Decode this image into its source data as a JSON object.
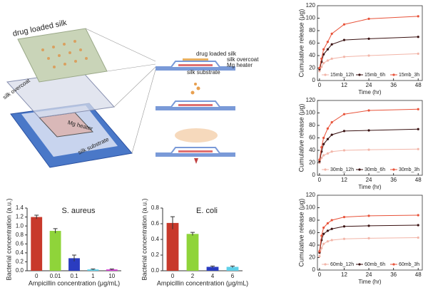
{
  "diagram": {
    "left_labels": [
      "drug loaded silk",
      "silk overcoat",
      "Mg heater",
      "silk substrate"
    ],
    "cross_section_labels": [
      "drug loaded silk",
      "silk overcoat",
      "Mg heater",
      "silk substrate"
    ]
  },
  "chart_data": [
    {
      "type": "line",
      "x": [
        0,
        1,
        2,
        4,
        6,
        12,
        24,
        48
      ],
      "xlim": [
        -1,
        50
      ],
      "xticks": [
        0,
        12,
        24,
        36,
        48
      ],
      "ylim": [
        0,
        120
      ],
      "yticks": [
        0,
        20,
        40,
        60,
        80,
        100,
        120
      ],
      "x_label": "Time (hr)",
      "y_label": "Cumulative release (μg)",
      "legend": "bottom",
      "series": [
        {
          "name": "15mb_12h",
          "color": "#f2b5a8",
          "values": [
            15,
            22,
            28,
            32,
            35,
            38,
            40,
            43
          ]
        },
        {
          "name": "15mb_6h",
          "color": "#3a1212",
          "values": [
            18,
            30,
            42,
            50,
            58,
            65,
            67,
            70
          ]
        },
        {
          "name": "15mb_3h",
          "color": "#e8533a",
          "values": [
            20,
            35,
            50,
            62,
            75,
            90,
            99,
            103
          ]
        }
      ]
    },
    {
      "type": "line",
      "x": [
        0,
        1,
        2,
        4,
        6,
        12,
        24,
        48
      ],
      "xlim": [
        -1,
        50
      ],
      "xticks": [
        0,
        12,
        24,
        36,
        48
      ],
      "ylim": [
        0,
        120
      ],
      "yticks": [
        0,
        20,
        40,
        60,
        80,
        100,
        120
      ],
      "x_label": "Time (hr)",
      "y_label": "Cumulative release (μg)",
      "legend": "bottom",
      "series": [
        {
          "name": "30mb_12h",
          "color": "#f2b5a8",
          "values": [
            20,
            28,
            32,
            35,
            38,
            40,
            41,
            42
          ]
        },
        {
          "name": "30mb_6h",
          "color": "#3a1212",
          "values": [
            22,
            38,
            50,
            58,
            65,
            71,
            72,
            74
          ]
        },
        {
          "name": "30mb_3h",
          "color": "#e8533a",
          "values": [
            25,
            45,
            60,
            75,
            85,
            98,
            104,
            106
          ]
        }
      ]
    },
    {
      "type": "line",
      "x": [
        0,
        1,
        2,
        4,
        6,
        12,
        24,
        48
      ],
      "xlim": [
        -1,
        50
      ],
      "xticks": [
        0,
        12,
        24,
        36,
        48
      ],
      "ylim": [
        0,
        120
      ],
      "yticks": [
        0,
        20,
        40,
        60,
        80,
        100,
        120
      ],
      "x_label": "Time (hr)",
      "y_label": "Cumulative release (μg)",
      "legend": "bottom",
      "series": [
        {
          "name": "60mb_12h",
          "color": "#f2b5a8",
          "values": [
            22,
            35,
            42,
            46,
            48,
            50,
            51,
            52
          ]
        },
        {
          "name": "60mb_6h",
          "color": "#3a1212",
          "values": [
            28,
            48,
            58,
            63,
            66,
            70,
            71,
            72
          ]
        },
        {
          "name": "60mb_3h",
          "color": "#e8533a",
          "values": [
            30,
            55,
            68,
            75,
            80,
            85,
            87,
            88
          ]
        }
      ]
    },
    {
      "type": "bar",
      "title": "S. aureus",
      "categories": [
        "0",
        "0.01",
        "0.1",
        "1",
        "10"
      ],
      "values": [
        1.2,
        0.89,
        0.28,
        0.03,
        0.03
      ],
      "errors": [
        0.04,
        0.05,
        0.07,
        0.01,
        0.01
      ],
      "colors": [
        "#c8392b",
        "#8fd43a",
        "#2a3cc0",
        "#5fd0e8",
        "#d040d0"
      ],
      "ylim": [
        0,
        1.4
      ],
      "yticks": [
        {
          "value": 0,
          "label": "0.0"
        },
        0.2,
        0.4,
        0.6,
        0.8,
        {
          "value": 1,
          "label": "1.0"
        },
        1.2,
        1.4
      ],
      "x_label": "Ampicillin concentration (μg/mL)",
      "y_label": "Bacterial concentration (a.u.)"
    },
    {
      "type": "bar",
      "title": "E. coli",
      "categories": [
        "0",
        "2",
        "4",
        "6"
      ],
      "values": [
        0.61,
        0.47,
        0.05,
        0.05
      ],
      "errors": [
        0.08,
        0.02,
        0.01,
        0.01
      ],
      "colors": [
        "#c8392b",
        "#8fd43a",
        "#2a3cc0",
        "#5fd0e8"
      ],
      "ylim": [
        0,
        0.8
      ],
      "yticks": [
        {
          "value": 0,
          "label": "0.0"
        },
        0.2,
        0.4,
        0.6,
        0.8
      ],
      "x_label": "Ampicillin concentration (μg/mL)",
      "y_label": "Bacterial concentration (a.u.)"
    }
  ]
}
